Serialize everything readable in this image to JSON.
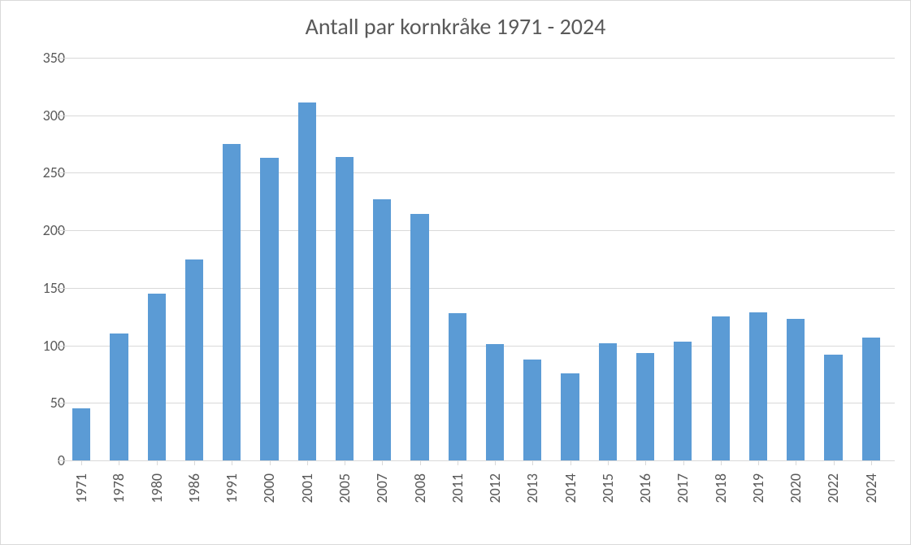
{
  "chart": {
    "type": "bar",
    "title": "Antall par kornkråke 1971 - 2024",
    "title_fontsize": 28,
    "title_color": "#595959",
    "categories": [
      "1971",
      "1978",
      "1980",
      "1986",
      "1991",
      "2000",
      "2001",
      "2005",
      "2007",
      "2008",
      "2011",
      "2012",
      "2013",
      "2014",
      "2015",
      "2016",
      "2017",
      "2018",
      "2019",
      "2020",
      "2022",
      "2024"
    ],
    "values": [
      45,
      110,
      145,
      175,
      275,
      263,
      311,
      264,
      227,
      214,
      128,
      101,
      88,
      76,
      102,
      93,
      103,
      125,
      129,
      123,
      92,
      107
    ],
    "bar_color": "#5b9bd5",
    "background_color": "#ffffff",
    "grid_color": "#d9d9d9",
    "border_color": "#d9d9d9",
    "label_color": "#595959",
    "label_fontsize": 18,
    "ylim": [
      0,
      350
    ],
    "ytick_step": 50,
    "yticks": [
      0,
      50,
      100,
      150,
      200,
      250,
      300,
      350
    ],
    "bar_width": 0.48,
    "x_label_rotation": -90,
    "grid_horizontal": true,
    "grid_vertical": false
  }
}
